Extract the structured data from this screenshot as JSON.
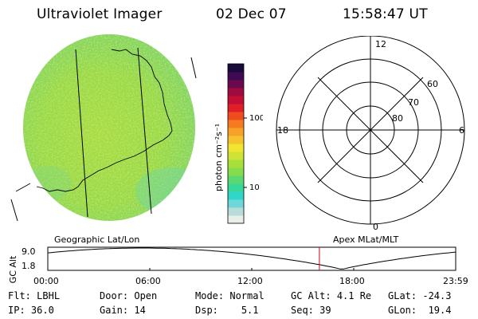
{
  "header": {
    "instrument": "Ultraviolet Imager",
    "date": "02 Dec 07",
    "time": "15:58:47 UT"
  },
  "colorbar": {
    "unit_label": "photon cm⁻²s⁻¹",
    "ticks": [
      {
        "label": "100",
        "value": 100
      },
      {
        "label": "10",
        "value": 10
      }
    ],
    "colors": [
      "#e8eee8",
      "#b8dcd8",
      "#6fd7da",
      "#2fd7c8",
      "#3ad79a",
      "#5cd870",
      "#86dc4c",
      "#a8e03b",
      "#cde436",
      "#f2e52f",
      "#f6c22d",
      "#f6a12a",
      "#f57b20",
      "#ee4d1f",
      "#e01e2a",
      "#c40f34",
      "#9f0a3f",
      "#6a0a4d",
      "#3e0a53",
      "#1a0a3a"
    ]
  },
  "polar_plot": {
    "labels": {
      "noon": "12",
      "dusk": "18",
      "dawn": "6",
      "midnight": "0",
      "lat60": "60",
      "lat70": "70",
      "lat80": "80"
    }
  },
  "altitude_panel": {
    "ylabel": "GC Alt",
    "y_ticks": [
      "9.0",
      "1.8"
    ],
    "left_caption": "Geographic Lat/Lon",
    "right_caption": "Apex MLat/MLT",
    "x_ticks": [
      "00:00",
      "06:00",
      "12:00",
      "18:00",
      "23:59"
    ],
    "current_time_hours": 15.98
  },
  "status": {
    "row1": [
      {
        "label": "Flt:",
        "value": "LBHL"
      },
      {
        "label": "Door:",
        "value": "Open"
      },
      {
        "label": "Mode:",
        "value": "Normal"
      },
      {
        "label": "GC Alt:",
        "value": "4.1 Re"
      },
      {
        "label": "GLat:",
        "value": "-24.3"
      }
    ],
    "row2": [
      {
        "label": "IP:",
        "value": "36.0"
      },
      {
        "label": "Gain:",
        "value": "14"
      },
      {
        "label": "Dsp:",
        "value": "5.1"
      },
      {
        "label": "Seq:",
        "value": "39"
      },
      {
        "label": "GLon:",
        "value": "19.4"
      }
    ]
  }
}
